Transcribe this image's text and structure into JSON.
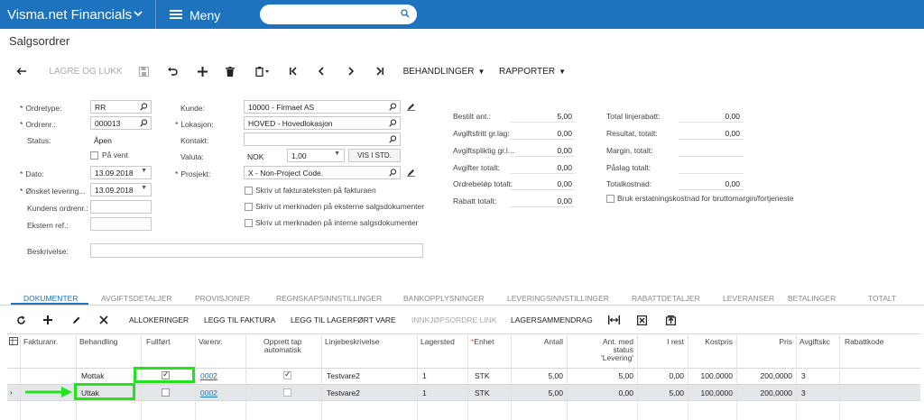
{
  "topbar": {
    "app_title": "Visma.net Financials",
    "menu_label": "Meny",
    "search_placeholder": ""
  },
  "page_title": "Salgsordrer",
  "toolbar": {
    "save_close": "LAGRE OG LUKK",
    "processing": "BEHANDLINGER",
    "reports": "RAPPORTER"
  },
  "form": {
    "col1": {
      "ordertype_label": "Ordretype:",
      "ordertype_value": "RR",
      "ordernr_label": "Ordrenr.:",
      "ordernr_value": "000013",
      "status_label": "Status:",
      "status_value": "Åpen",
      "hold_label": "På vent",
      "date_label": "Dato:",
      "date_value": "13.09.2018",
      "desired_label": "Ønsket levering...",
      "desired_value": "13.09.2018",
      "customer_order_label": "Kundens ordrenr.:",
      "customer_order_value": "",
      "external_ref_label": "Ekstern ref.:",
      "external_ref_value": "",
      "description_label": "Beskrivelse:",
      "description_value": ""
    },
    "col2": {
      "customer_label": "Kunde:",
      "customer_value": "10000 - Firmaet AS",
      "location_label": "Lokasjon:",
      "location_value": "HOVED - Hovedlokasjon",
      "contact_label": "Kontakt:",
      "contact_value": "",
      "currency_label": "Valuta:",
      "currency_value": "NOK",
      "rate_value": "1,00",
      "view_std_label": "VIS I STD.",
      "project_label": "Prosjekt:",
      "project_value": "X - Non-Project Code.",
      "cb1_label": "Skriv ut fakturateksten på fakturaen",
      "cb2_label": "Skriv ut merknaden på eksterne salgsdokumenter",
      "cb3_label": "Skriv ut merknaden på interne salgsdokumenter"
    },
    "col3": {
      "ordered_qty_label": "Bestilt ant.:",
      "ordered_qty_value": "5,00",
      "vat_exempt_label": "Avgiftsfritt gr.lag:",
      "vat_exempt_value": "0,00",
      "vat_taxable_label": "Avgiftspliktig gr.l...",
      "vat_taxable_value": "0,00",
      "vat_total_label": "Avgifter totalt:",
      "vat_total_value": "0,00",
      "order_amount_label": "Ordrebeløp totalt:",
      "order_amount_value": "0,00",
      "discount_total_label": "Rabatt totalt:",
      "discount_total_value": "0,00"
    },
    "col4": {
      "line_discount_label": "Total linjerabatt:",
      "line_discount_value": "0,00",
      "result_label": "Resultat, totalt:",
      "result_value": "0,00",
      "margin_label": "Margin, totalt:",
      "margin_value": "",
      "markup_label": "Påslag totalt:",
      "markup_value": "",
      "total_cost_label": "Totalkostnad:",
      "total_cost_value": "0,00",
      "replacement_cost_label": "Bruk erstatningskostnad for bruttomargin/fortjeneste"
    }
  },
  "tabs": [
    "DOKUMENTER",
    "AVGIFTSDETALJER",
    "PROVISJONER",
    "REGNSKAPSINNSTILLINGER",
    "BANKOPPLYSNINGER",
    "LEVERINGSINNSTILLINGER",
    "RABATTDETALJER",
    "LEVERANSER",
    "BETALINGER",
    "TOTALT"
  ],
  "grid_toolbar": {
    "allocations": "ALLOKERINGER",
    "add_invoice": "LEGG TIL FAKTURA",
    "add_stock": "LEGG TIL LAGERFØRT VARE",
    "purchase_link": "INNKJØPSORDRE LINK",
    "stock_summary": "LAGERSAMMENDRAG"
  },
  "grid": {
    "headers": {
      "invoice_nr": "Fakturanr.",
      "processing": "Behandling",
      "completed": "Fullført",
      "item_nr": "Varenr.",
      "auto_create_1": "Opprett tap",
      "auto_create_2": "automatisk",
      "line_desc": "Linjebeskrivelse",
      "warehouse": "Lagersted",
      "unit": "Enhet",
      "qty": "Antall",
      "qty_status_1": "Ant. med",
      "qty_status_2": "status",
      "qty_status_3": "'Levering'",
      "remaining": "I rest",
      "cost_price": "Kostpris",
      "price": "Pris",
      "vat_code": "Avgiftskc",
      "discount_code": "Rabattkode"
    },
    "rows": [
      {
        "invoice_nr": "",
        "processing": "Mottak",
        "completed": true,
        "item_nr": "0002",
        "auto_create": true,
        "line_desc": "Testvare2",
        "warehouse": "1",
        "unit": "STK",
        "qty": "5,00",
        "qty_status": "5,00",
        "remaining": "0,00",
        "cost_price": "100,0000",
        "price": "200,0000",
        "vat_code": "3",
        "discount_code": ""
      },
      {
        "invoice_nr": "",
        "processing": "Uttak",
        "completed": false,
        "item_nr": "0002",
        "auto_create": false,
        "line_desc": "Testvare2",
        "warehouse": "1",
        "unit": "STK",
        "qty": "5,00",
        "qty_status": "0,00",
        "remaining": "5,00",
        "cost_price": "100,0000",
        "price": "200,0000",
        "vat_code": "3",
        "discount_code": ""
      }
    ]
  },
  "colors": {
    "brand_blue": "#1e73be",
    "highlight_green": "#22e31c",
    "selected_row": "#e4e7ea"
  }
}
